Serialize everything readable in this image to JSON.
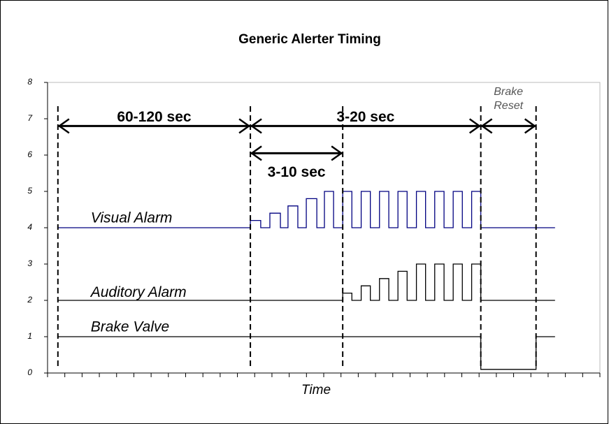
{
  "chart_data": {
    "type": "timing",
    "title": "Generic Alerter Timing",
    "x_label": "Time",
    "xlim": [
      0,
      32
    ],
    "xticks": [
      0,
      1,
      2,
      3,
      4,
      5,
      6,
      7,
      8,
      9,
      10,
      11,
      12,
      13,
      14,
      15,
      16,
      17,
      18,
      19,
      20,
      21,
      22,
      23,
      24,
      25,
      26,
      27,
      28,
      29,
      30,
      31,
      32
    ],
    "ylim": [
      0,
      8
    ],
    "yticks": [
      0,
      1,
      2,
      3,
      4,
      5,
      6,
      7,
      8
    ],
    "series": [
      {
        "name": "Visual Alarm",
        "color": "#000080",
        "label_x": 2.5,
        "label_y": 4.25,
        "x": [
          0.6,
          11.75,
          11.75,
          12.35,
          12.35,
          12.88,
          12.88,
          13.49,
          13.49,
          13.93,
          13.93,
          14.5,
          14.5,
          14.99,
          14.99,
          15.6,
          15.6,
          16.04,
          16.04,
          16.57,
          16.57,
          17.1,
          17.1,
          17.63,
          17.63,
          18.17,
          18.17,
          18.7,
          18.7,
          19.23,
          19.23,
          19.77,
          19.77,
          20.3,
          20.3,
          20.83,
          20.83,
          21.37,
          21.37,
          21.9,
          21.9,
          22.43,
          22.43,
          22.97,
          22.97,
          23.5,
          23.5,
          24.03,
          24.03,
          24.57,
          24.57,
          25.1,
          25.1,
          29.4
        ],
        "values": [
          4,
          4,
          4.2,
          4.2,
          4,
          4,
          4.4,
          4.4,
          4,
          4,
          4.6,
          4.6,
          4,
          4,
          4.8,
          4.8,
          4,
          4,
          5,
          5,
          4,
          4,
          5,
          5,
          4,
          4,
          5,
          5,
          4,
          4,
          5,
          5,
          4,
          4,
          5,
          5,
          4,
          4,
          5,
          5,
          4,
          4,
          5,
          5,
          4,
          4,
          5,
          5,
          4,
          4,
          5,
          5,
          4,
          4
        ]
      },
      {
        "name": "Auditory Alarm",
        "color": "#000000",
        "label_x": 2.5,
        "label_y": 2.2,
        "x": [
          0.6,
          17.1,
          17.1,
          17.63,
          17.63,
          18.17,
          18.17,
          18.7,
          18.7,
          19.23,
          19.23,
          19.77,
          19.77,
          20.3,
          20.3,
          20.83,
          20.83,
          21.37,
          21.37,
          21.9,
          21.9,
          22.43,
          22.43,
          22.97,
          22.97,
          23.5,
          23.5,
          24.03,
          24.03,
          24.57,
          24.57,
          25.1,
          25.1,
          29.4
        ],
        "values": [
          2,
          2,
          2.2,
          2.2,
          2,
          2,
          2.4,
          2.4,
          2,
          2,
          2.6,
          2.6,
          2,
          2,
          2.8,
          2.8,
          2,
          2,
          3,
          3,
          2,
          2,
          3,
          3,
          2,
          2,
          3,
          3,
          2,
          2,
          3,
          3,
          2,
          2
        ]
      },
      {
        "name": "Brake Valve",
        "color": "#000000",
        "label_x": 2.5,
        "label_y": 1.25,
        "x": [
          0.6,
          25.1,
          25.1,
          28.3,
          28.3,
          29.4
        ],
        "values": [
          1,
          1,
          0.1,
          0.1,
          1,
          1
        ]
      }
    ],
    "vlines": [
      0.6,
      11.75,
      17.1,
      25.1,
      28.3
    ],
    "intervals": [
      {
        "label": "60-120 sec",
        "from": 0.6,
        "to": 11.75,
        "y": 6.8,
        "label_position": "above"
      },
      {
        "label": "3-20 sec",
        "from": 11.75,
        "to": 25.1,
        "y": 6.8,
        "label_position": "above"
      },
      {
        "label": "3-10 sec",
        "from": 11.75,
        "to": 17.1,
        "y": 6.05,
        "label_position": "below"
      },
      {
        "label": "Brake Reset",
        "from": 25.1,
        "to": 28.3,
        "y": 6.8,
        "label_position": "note"
      }
    ]
  }
}
